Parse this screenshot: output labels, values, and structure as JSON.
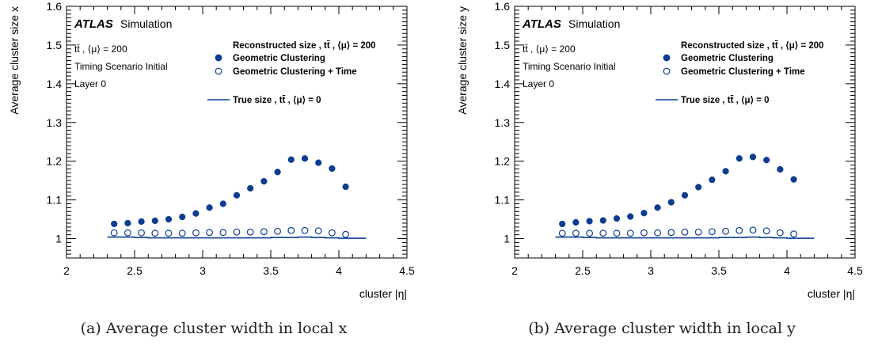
{
  "chart_data": [
    {
      "type": "scatter",
      "xlabel": "cluster |η|",
      "ylabel": "Average cluster size x",
      "xlim": [
        2,
        4.5
      ],
      "ylim": [
        0.95,
        1.6
      ],
      "xticks": [
        "2",
        "2.5",
        "3",
        "3.5",
        "4",
        "4.5"
      ],
      "yticks": [
        "1",
        "1.1",
        "1.2",
        "1.3",
        "1.4",
        "1.5",
        "1.6"
      ],
      "atlas": {
        "brand": "ATLAS",
        "label": "Simulation"
      },
      "info": [
        "tt̄ , ⟨μ⟩ = 200",
        "Timing Scenario Initial",
        "Layer 0"
      ],
      "legend_header": "Reconstructed size , tt̄ , ⟨μ⟩ = 200",
      "series": [
        {
          "name": "Geometric Clustering",
          "marker": "filled-circle",
          "x": [
            2.35,
            2.45,
            2.55,
            2.65,
            2.75,
            2.85,
            2.95,
            3.05,
            3.15,
            3.25,
            3.35,
            3.45,
            3.55,
            3.65,
            3.75,
            3.85,
            3.95,
            4.05
          ],
          "y": [
            1.038,
            1.04,
            1.044,
            1.046,
            1.05,
            1.056,
            1.065,
            1.08,
            1.09,
            1.112,
            1.13,
            1.148,
            1.172,
            1.204,
            1.207,
            1.196,
            1.181,
            1.134
          ]
        },
        {
          "name": "Geometric Clustering + Time",
          "marker": "open-circle",
          "x": [
            2.35,
            2.45,
            2.55,
            2.65,
            2.75,
            2.85,
            2.95,
            3.05,
            3.15,
            3.25,
            3.35,
            3.45,
            3.55,
            3.65,
            3.75,
            3.85,
            3.95,
            4.05
          ],
          "y": [
            1.015,
            1.015,
            1.015,
            1.014,
            1.014,
            1.014,
            1.015,
            1.016,
            1.016,
            1.017,
            1.017,
            1.018,
            1.019,
            1.021,
            1.021,
            1.02,
            1.015,
            1.011
          ]
        },
        {
          "name": "True size , tt̄ , ⟨μ⟩ = 0",
          "marker": "line",
          "x": [
            2.3,
            2.4,
            2.5,
            2.6,
            2.7,
            2.8,
            2.9,
            3.0,
            3.1,
            3.2,
            3.3,
            3.4,
            3.5,
            3.6,
            3.7,
            3.8,
            3.9,
            4.0,
            4.1
          ],
          "y": [
            1.004,
            1.004,
            1.003,
            1.002,
            1.002,
            1.002,
            1.002,
            1.002,
            1.002,
            1.002,
            1.002,
            1.002,
            1.003,
            1.003,
            1.004,
            1.003,
            1.002,
            1.001,
            1.001
          ]
        }
      ]
    },
    {
      "type": "scatter",
      "xlabel": "cluster |η|",
      "ylabel": "Average cluster size y",
      "xlim": [
        2,
        4.5
      ],
      "ylim": [
        0.95,
        1.6
      ],
      "xticks": [
        "2",
        "2.5",
        "3",
        "3.5",
        "4",
        "4.5"
      ],
      "yticks": [
        "1",
        "1.1",
        "1.2",
        "1.3",
        "1.4",
        "1.5",
        "1.6"
      ],
      "atlas": {
        "brand": "ATLAS",
        "label": "Simulation"
      },
      "info": [
        "tt̄ , ⟨μ⟩ = 200",
        "Timing Scenario Initial",
        "Layer 0"
      ],
      "legend_header": "Reconstructed size , tt̄ , ⟨μ⟩ = 200",
      "series": [
        {
          "name": "Geometric Clustering",
          "marker": "filled-circle",
          "x": [
            2.35,
            2.45,
            2.55,
            2.65,
            2.75,
            2.85,
            2.95,
            3.05,
            3.15,
            3.25,
            3.35,
            3.45,
            3.55,
            3.65,
            3.75,
            3.85,
            3.95,
            4.05
          ],
          "y": [
            1.038,
            1.042,
            1.045,
            1.047,
            1.052,
            1.057,
            1.066,
            1.08,
            1.094,
            1.112,
            1.133,
            1.152,
            1.174,
            1.207,
            1.211,
            1.203,
            1.179,
            1.153
          ]
        },
        {
          "name": "Geometric Clustering + Time",
          "marker": "open-circle",
          "x": [
            2.35,
            2.45,
            2.55,
            2.65,
            2.75,
            2.85,
            2.95,
            3.05,
            3.15,
            3.25,
            3.35,
            3.45,
            3.55,
            3.65,
            3.75,
            3.85,
            3.95,
            4.05
          ],
          "y": [
            1.014,
            1.014,
            1.014,
            1.014,
            1.014,
            1.014,
            1.015,
            1.015,
            1.016,
            1.017,
            1.017,
            1.018,
            1.019,
            1.021,
            1.022,
            1.02,
            1.015,
            1.012
          ]
        },
        {
          "name": "True size , tt̄ , ⟨μ⟩ = 0",
          "marker": "line",
          "x": [
            2.3,
            2.4,
            2.5,
            2.6,
            2.7,
            2.8,
            2.9,
            3.0,
            3.1,
            3.2,
            3.3,
            3.4,
            3.5,
            3.6,
            3.7,
            3.8,
            3.9,
            4.0,
            4.1
          ],
          "y": [
            1.004,
            1.004,
            1.003,
            1.002,
            1.002,
            1.002,
            1.002,
            1.002,
            1.002,
            1.002,
            1.002,
            1.002,
            1.003,
            1.003,
            1.004,
            1.003,
            1.002,
            1.001,
            1.001
          ]
        }
      ]
    }
  ],
  "captions": [
    "(a) Average cluster width in local x",
    "(b) Average cluster width in local y"
  ],
  "colors": {
    "marker": "#0b3d91",
    "axis": "#000000"
  }
}
